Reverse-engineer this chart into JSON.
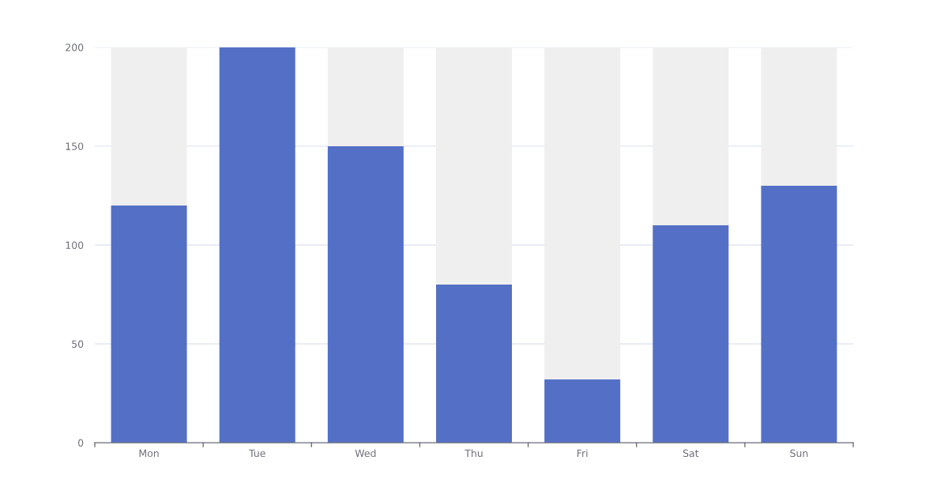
{
  "chart_data": {
    "type": "bar",
    "categories": [
      "Mon",
      "Tue",
      "Wed",
      "Thu",
      "Fri",
      "Sat",
      "Sun"
    ],
    "stacked": true,
    "series": [
      {
        "color": "#5470c6",
        "values": [
          120,
          200,
          150,
          80,
          32,
          110,
          130
        ]
      },
      {
        "color": "#efefef",
        "values": [
          80,
          0,
          50,
          120,
          168,
          90,
          70
        ]
      }
    ],
    "ylim": [
      0,
      200
    ],
    "yticks": [
      0,
      50,
      100,
      150,
      200
    ],
    "grid": "y"
  }
}
